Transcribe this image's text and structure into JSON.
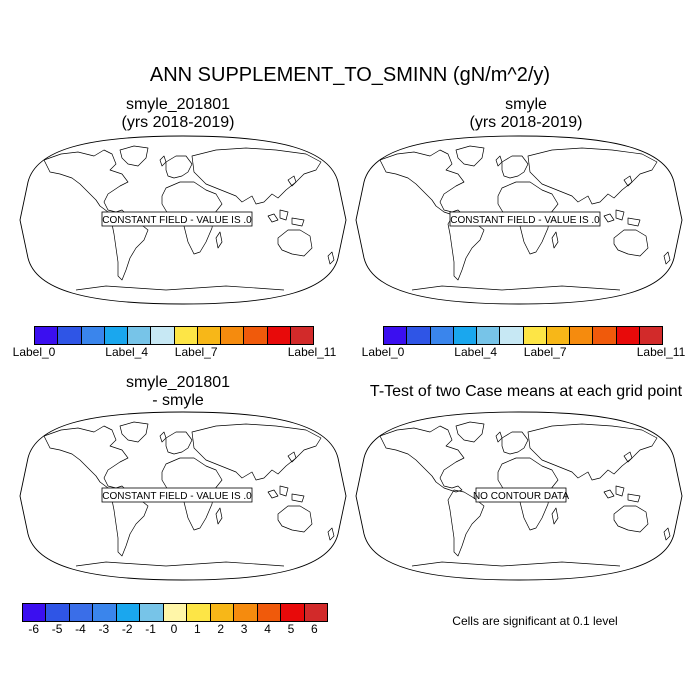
{
  "title": "ANN SUPPLEMENT_TO_SMINN (gN/m^2/y)",
  "panels": [
    {
      "title_line1": "smyle_201801",
      "title_line2": "(yrs 2018-2019)",
      "message": "CONSTANT FIELD - VALUE IS .0"
    },
    {
      "title_line1": "smyle",
      "title_line2": "(yrs 2018-2019)",
      "message": "CONSTANT FIELD - VALUE IS .0"
    },
    {
      "title_line1": "smyle_201801",
      "title_line2": "- smyle",
      "message": "CONSTANT FIELD - VALUE IS .0"
    },
    {
      "title_line1": "T-Test of two Case means at each grid point",
      "title_line2": "",
      "message": "NO CONTOUR DATA"
    }
  ],
  "colorbar_case": {
    "colors": [
      "#3b0ff0",
      "#2f55e6",
      "#3a85ec",
      "#1aa7ee",
      "#77c4e8",
      "#c7e8f4",
      "#fde546",
      "#f7b718",
      "#f58b0e",
      "#f05a0b",
      "#e80a0a",
      "#d22a2a"
    ],
    "labels": [
      {
        "text": "Label_0",
        "index": 0
      },
      {
        "text": "Label_4",
        "index": 4
      },
      {
        "text": "Label_7",
        "index": 7
      },
      {
        "text": "Label_11",
        "index": 11
      }
    ]
  },
  "colorbar_diff": {
    "colors": [
      "#3b0ff0",
      "#2f55e6",
      "#3a6ee8",
      "#3a85ec",
      "#1aa7ee",
      "#77c4e8",
      "#fff6a8",
      "#fde546",
      "#f7b718",
      "#f58b0e",
      "#f05a0b",
      "#e80a0a",
      "#d22a2a"
    ],
    "labels": [
      "-6",
      "-5",
      "-4",
      "-3",
      "-2",
      "-1",
      "0",
      "1",
      "2",
      "3",
      "4",
      "5",
      "6"
    ]
  },
  "significance_note": "Cells are significant at 0.1 level"
}
